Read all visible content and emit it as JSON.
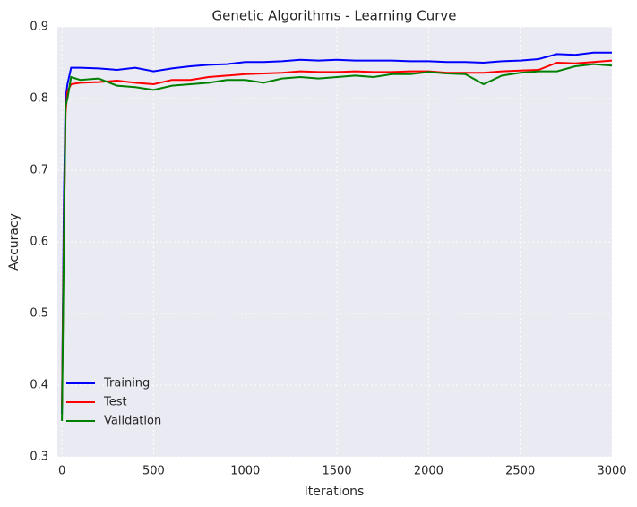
{
  "chart_data": {
    "type": "line",
    "title": "Genetic Algorithms - Learning Curve",
    "xlabel": "Iterations",
    "ylabel": "Accuracy",
    "x": [
      0,
      10,
      20,
      30,
      50,
      100,
      200,
      300,
      400,
      500,
      600,
      700,
      800,
      900,
      1000,
      1100,
      1200,
      1300,
      1400,
      1500,
      1600,
      1700,
      1800,
      1900,
      2000,
      2100,
      2200,
      2300,
      2400,
      2500,
      2600,
      2700,
      2800,
      2900,
      3000
    ],
    "series": [
      {
        "name": "Training",
        "color": "#0000ff",
        "values": [
          0.36,
          0.65,
          0.8,
          0.82,
          0.843,
          0.843,
          0.842,
          0.84,
          0.843,
          0.838,
          0.842,
          0.845,
          0.847,
          0.848,
          0.851,
          0.851,
          0.852,
          0.854,
          0.853,
          0.854,
          0.853,
          0.853,
          0.853,
          0.852,
          0.852,
          0.851,
          0.851,
          0.85,
          0.852,
          0.853,
          0.855,
          0.862,
          0.861,
          0.864,
          0.864
        ]
      },
      {
        "name": "Test",
        "color": "#ff0000",
        "values": [
          0.37,
          0.6,
          0.78,
          0.81,
          0.82,
          0.822,
          0.823,
          0.825,
          0.822,
          0.82,
          0.826,
          0.826,
          0.83,
          0.832,
          0.834,
          0.835,
          0.836,
          0.838,
          0.837,
          0.837,
          0.838,
          0.837,
          0.837,
          0.838,
          0.838,
          0.836,
          0.836,
          0.836,
          0.838,
          0.839,
          0.84,
          0.85,
          0.849,
          0.851,
          0.853
        ]
      },
      {
        "name": "Validation",
        "color": "#008000",
        "values": [
          0.35,
          0.58,
          0.79,
          0.8,
          0.83,
          0.826,
          0.828,
          0.818,
          0.816,
          0.812,
          0.818,
          0.82,
          0.822,
          0.826,
          0.826,
          0.822,
          0.828,
          0.83,
          0.828,
          0.83,
          0.832,
          0.83,
          0.834,
          0.834,
          0.837,
          0.835,
          0.834,
          0.82,
          0.832,
          0.836,
          0.838,
          0.838,
          0.845,
          0.848,
          0.846
        ]
      }
    ],
    "xlim": [
      -25,
      3000
    ],
    "xticks": [
      0,
      500,
      1000,
      1500,
      2000,
      2500,
      3000
    ],
    "ylim": [
      0.3,
      0.9
    ],
    "yticks": [
      0.3,
      0.4,
      0.5,
      0.6,
      0.7,
      0.8,
      0.9
    ],
    "grid": true,
    "legend": "lower left"
  }
}
